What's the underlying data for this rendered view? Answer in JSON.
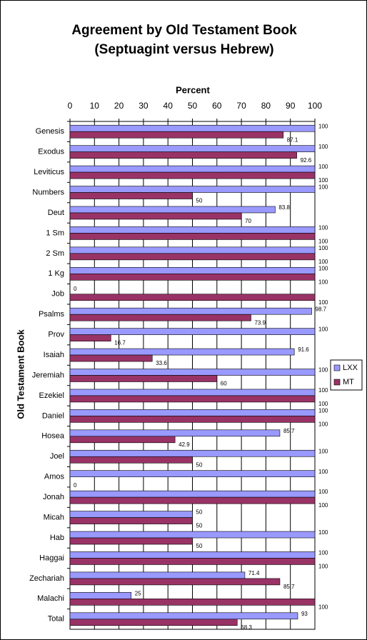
{
  "chart_data": {
    "type": "bar",
    "orientation": "horizontal",
    "title": "Agreement by Old Testament Book",
    "subtitle": "(Septuagint versus Hebrew)",
    "x_label": "Percent",
    "y_label": "Old Testament Book",
    "categories": [
      "Genesis",
      "Exodus",
      "Leviticus",
      "Numbers",
      "Deut",
      "1 Sm",
      "2 Sm",
      "1 Kg",
      "Job",
      "Psalms",
      "Prov",
      "Isaiah",
      "Jeremiah",
      "Ezekiel",
      "Daniel",
      "Hosea",
      "Joel",
      "Amos",
      "Jonah",
      "Micah",
      "Hab",
      "Haggai",
      "Zechariah",
      "Malachi",
      "Total"
    ],
    "series": [
      {
        "name": "LXX",
        "color": "#9999ff",
        "values": [
          100,
          100,
          100,
          100,
          83.8,
          100,
          100,
          100,
          0,
          98.7,
          100,
          91.6,
          100,
          100,
          100,
          85.7,
          100,
          100,
          100,
          50,
          100,
          100,
          71.4,
          25,
          93
        ]
      },
      {
        "name": "MT",
        "color": "#993366",
        "values": [
          87.1,
          92.6,
          100,
          50,
          70,
          100,
          100,
          100,
          100,
          73.9,
          16.7,
          33.6,
          60,
          100,
          100,
          42.9,
          50,
          0,
          100,
          50,
          50,
          100,
          85.7,
          100,
          68.3
        ]
      }
    ],
    "xlim": [
      0,
      100
    ],
    "xticks": [
      0,
      10,
      20,
      30,
      40,
      50,
      60,
      70,
      80,
      90,
      100
    ],
    "grid": true,
    "legend": "right"
  }
}
